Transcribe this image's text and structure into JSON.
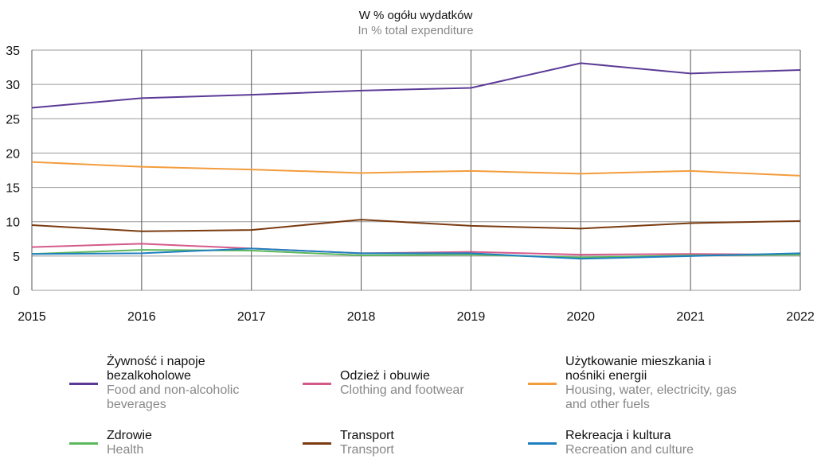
{
  "chart_data": {
    "type": "line",
    "title": "W % ogółu wydatków",
    "subtitle": "In % total expenditure",
    "x": [
      2015,
      2016,
      2017,
      2018,
      2019,
      2020,
      2021,
      2022
    ],
    "xlim": [
      2015,
      2022
    ],
    "xticks": [
      2015,
      2016,
      2017,
      2018,
      2019,
      2020,
      2021,
      2022
    ],
    "ylim": [
      0,
      35
    ],
    "yticks": [
      0,
      5,
      10,
      15,
      20,
      25,
      30,
      35
    ],
    "grid": true,
    "series": [
      {
        "name": "Żywność i napoje bezalkoholowe",
        "name_en": "Food and non-alcoholic beverages",
        "color": "#5b3a96",
        "values": [
          26.6,
          28.0,
          28.5,
          29.1,
          29.5,
          33.1,
          31.6,
          32.1
        ]
      },
      {
        "name": "Odzież i obuwie",
        "name_en": "Clothing and footwear",
        "color": "#d45a8a",
        "values": [
          6.3,
          6.8,
          6.1,
          5.4,
          5.6,
          5.2,
          5.3,
          5.2
        ]
      },
      {
        "name": "Użytkowanie mieszkania i nośniki energii",
        "name_en": "Housing, water, electricity, gas and other fuels",
        "color": "#f39c3c",
        "values": [
          18.7,
          18.0,
          17.6,
          17.1,
          17.4,
          17.0,
          17.4,
          16.7
        ]
      },
      {
        "name": "Zdrowie",
        "name_en": "Health",
        "color": "#5cb85c",
        "values": [
          5.3,
          5.9,
          5.8,
          5.1,
          5.2,
          4.8,
          5.1,
          5.2
        ]
      },
      {
        "name": "Transport",
        "name_en": "Transport",
        "color": "#7a3b10",
        "values": [
          9.5,
          8.6,
          8.8,
          10.3,
          9.4,
          9.0,
          9.8,
          10.1
        ]
      },
      {
        "name": "Rekreacja i kultura",
        "name_en": "Recreation and culture",
        "color": "#1f7fc0",
        "values": [
          5.3,
          5.4,
          6.1,
          5.4,
          5.4,
          4.6,
          5.0,
          5.4
        ]
      }
    ]
  }
}
